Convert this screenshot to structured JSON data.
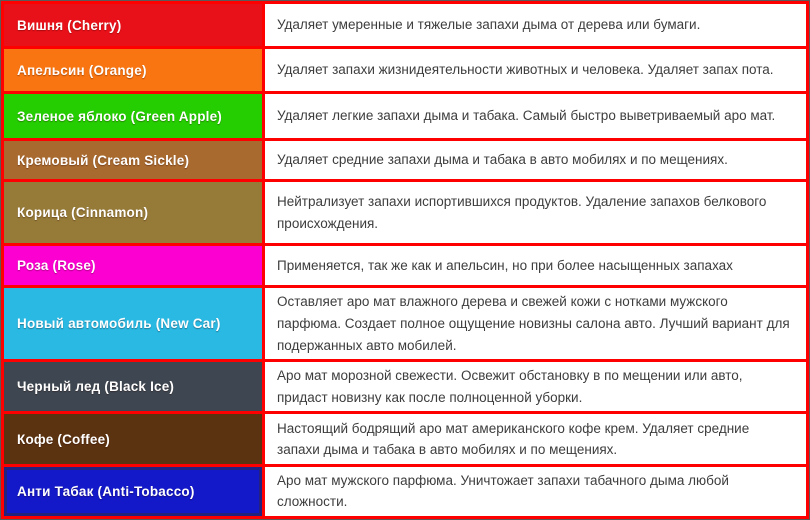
{
  "table": {
    "border_color": "#FE0000",
    "description_text_color": "#3D3D3D",
    "label_text_color": "#FFFFFF",
    "rows": [
      {
        "name": "Вишня (Cherry)",
        "color": "#E91119",
        "description": "Удаляет умеренные и тяжелые запахи дыма от дерева или бумаги."
      },
      {
        "name": "Апельсин (Orange)",
        "color": "#F87511",
        "description": "Удаляет запахи жизнидеятельности животных и человека. Удаляет запах пота."
      },
      {
        "name": "Зеленое яблоко (Green Apple)",
        "color": "#24CE00",
        "description": "Удаляет легкие запахи дыма и табака. Самый быстро выветриваемый аро мат."
      },
      {
        "name": "Кремовый (Cream Sickle)",
        "color": "#A96A2F",
        "description": "Удаляет средние запахи дыма и табака в авто мобилях и по мещениях."
      },
      {
        "name": "Корица (Cinnamon)",
        "color": "#967A38",
        "description": "Нейтрализует запахи испортившихся продуктов. Удаление запахов белкового происхождения."
      },
      {
        "name": "Роза (Rose)",
        "color": "#FB00D1",
        "description": "Применяется, так же как и апельсин, но при более насыщенных запахах"
      },
      {
        "name": "Новый автомобиль (New Car)",
        "color": "#29B9E3",
        "description": "Оставляет аро мат влажного дерева и свежей кожи с нотками мужского парфюма. Создает полное ощущение новизны салона авто. Лучший вариант для подержанных авто мобилей."
      },
      {
        "name": "Черный лед (Black Ice)",
        "color": "#3E4751",
        "description": "Аро мат морозной свежести. Освежит обстановку в по мещении или авто, придаст новизну как после полноценной уборки."
      },
      {
        "name": "Кофе (Coffee)",
        "color": "#5C3310",
        "description": "Настоящий бодрящий аро мат американского кофе крем. Удаляет средние запахи дыма и табака в авто мобилях и по мещениях."
      },
      {
        "name": "Анти Табак (Anti-Tobacco)",
        "color": "#1318C8",
        "inner_border": "#23237E",
        "description": "Аро мат мужского парфюма. Уничтожает запахи табачного дыма любой сложности."
      }
    ]
  }
}
